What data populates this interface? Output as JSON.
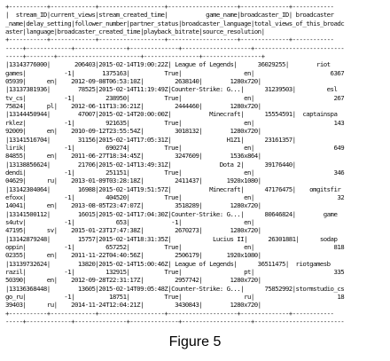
{
  "console_lines": [
    "+-----------+-------------+-------------------+--------------------+--------------+------------",
    "|  stream_ID|current_views|stream_created_time|           game_name|broadcaster_ID| broadcaster",
    "_name|delay_setting|follower_number|partner_status|broadcaster_language|total_views_of_this_broadc",
    "aster|language|broadcaster_created_time|playback_bitrate|source_resolution|",
    "+-----------+-------------+-------------------+--------------------+--------------+------------",
    "-----+-------------+---------------+--------------+--------------------+--------------------------",
    "-----+--------+------------------------+----------------+-----------------+",
    "|13143776000|       206403|2015-02-14T19:00:22Z| League of Legends|      36029255|        riot",
    "games|           -1|        1375163|          True|                  en|                      6367",
    "05939|      en|    2012-09-08T06:53:10Z|         2638140|        1280x720|",
    "|13137381936|        78525|2015-02-14T11:19:49Z|Counter-Strike: G...|      31239503|         esl",
    "tv_cs|           -1|         238950|          True|                  en|                       267",
    "75824|      pl|    2012-06-11T13:36:21Z|         2444460|        1280x720|",
    "|13144450944|        47007|2015-02-14T20:00:00Z|           Minecraft|      15554591|  captainspa",
    "rklez|           -1|         921635|          True|                  en|                       143",
    "92009|      en|    2010-09-12T23:55:54Z|         3018132|        1280x720|",
    "|13141516704|        31156|2015-02-14T17:05:31Z|                H1Z1|      23161357|            ",
    "lirik|           -1|         690274|          True|                  en|                       649",
    "84855|      en|    2011-06-27T18:34:45Z|         3247609|        1536x864|",
    "|13138856624|        21706|2015-02-14T13:49:31Z|              Dota 2|      39176440|            ",
    "dendi|           -1|         251151|          True|                  en|                       346",
    "04629|      ru|    2013-01-09T03:28:18Z|         2411437|       1920x1080|",
    "|13142304064|        16988|2015-02-14T19:51:57Z|           Minecraft|      47176475|    omgitsfir",
    "efoxx|           -1|         404520|          True|                  en|                        32",
    "14041|      en|    2013-08-05T23:47:07Z|         3518289|        1280x720|",
    "|13141500112|        16015|2015-02-14T17:04:30Z|Counter-Strike: G...|      80646824|        game",
    "s4utv|           -1|            653|            -1|                  en|                          ",
    "47195|      sv|    2015-01-23T17:47:38Z|         2670273|        1280x720|",
    "|13142879248|        15757|2015-02-14T18:31:35Z|            Lucius II|      26301881|      sodap",
    "oppin|           -1|         657252|          True|                  en|                       818",
    "02355|      en|    2011-11-22T04:40:56Z|         2506179|       1920x1080|",
    "|13139732624|        13820|2015-02-14T15:00:46Z| League of Legends|      36511475|  riotgamesb",
    "razil|           -1|         132915|          True|                  pt|                       335",
    "50390|      en|    2012-09-28T22:31:17Z|         2957742|        1280x720|",
    "|13136368448|        13605|2015-02-14T09:05:48Z|Counter-Strike: G...|      75852992|stormstudio_cs",
    "go_ru|           -1|          18751|          True|                  ru|                        18",
    "39403|      ru|    2014-11-24T12:04:21Z|         3430843|        1280x720|",
    "+-----------+-------------+-------------------+--------------------+--------------+------------",
    "-----+-------------+---------------+--------------+--------------------+--------------------------",
    "-----+--------+------------------------+----------------+-----------------+"
  ],
  "caption": "Figure 5"
}
